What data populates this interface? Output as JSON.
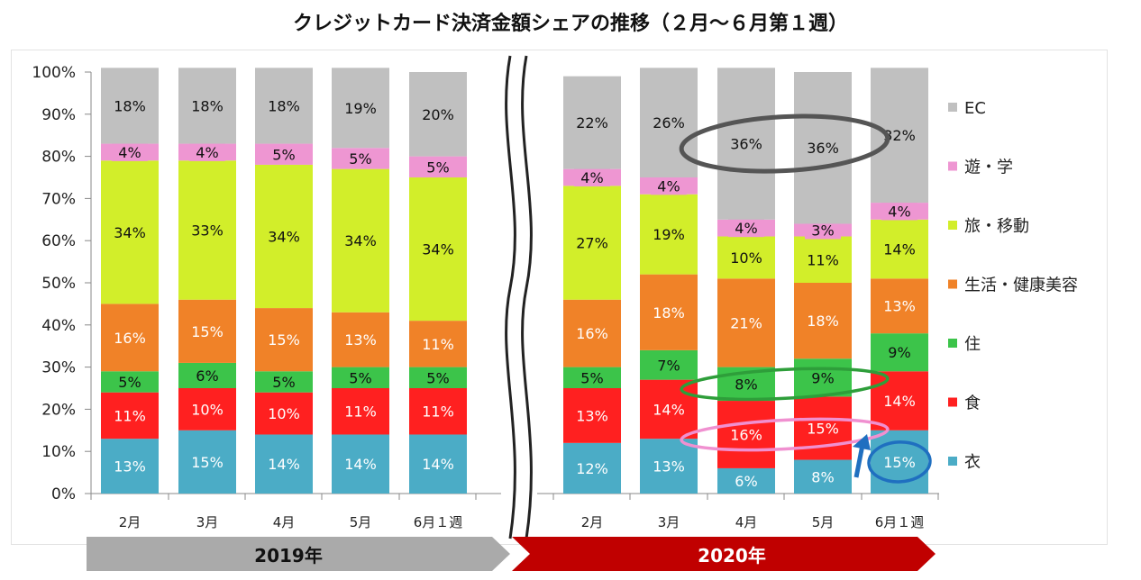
{
  "title": "クレジットカード決済金額シェアの推移（２月～６月第１週）",
  "chart_data": {
    "type": "bar",
    "stacked": true,
    "ylim": [
      0,
      100
    ],
    "yticks": [
      "0%",
      "10%",
      "20%",
      "30%",
      "40%",
      "50%",
      "60%",
      "70%",
      "80%",
      "90%",
      "100%"
    ],
    "groups": [
      {
        "name": "2019年",
        "color": "#aaaaaa",
        "categories": [
          "2月",
          "3月",
          "4月",
          "5月",
          "6月１週"
        ]
      },
      {
        "name": "2020年",
        "color": "#c00000",
        "categories": [
          "2月",
          "3月",
          "4月",
          "5月",
          "6月１週"
        ]
      }
    ],
    "series": [
      {
        "name": "衣",
        "color": "#4bacc6",
        "labelColor": "#ffffff",
        "values": [
          13,
          15,
          14,
          14,
          14,
          12,
          13,
          6,
          8,
          15
        ],
        "labels": [
          "13%",
          "15%",
          "14%",
          "14%",
          "14%",
          "12%",
          "13%",
          "6%",
          "8%",
          "15%"
        ]
      },
      {
        "name": "食",
        "color": "#ff2020",
        "labelColor": "#ffffff",
        "values": [
          11,
          10,
          10,
          11,
          11,
          13,
          14,
          16,
          15,
          14
        ],
        "labels": [
          "11%",
          "10%",
          "10%",
          "11%",
          "11%",
          "13%",
          "14%",
          "16%",
          "15%",
          "14%"
        ]
      },
      {
        "name": "住",
        "color": "#3cc44a",
        "labelColor": "#111111",
        "values": [
          5,
          6,
          5,
          5,
          5,
          5,
          7,
          8,
          9,
          9
        ],
        "labels": [
          "5%",
          "6%",
          "5%",
          "5%",
          "5%",
          "5%",
          "7%",
          "8%",
          "9%",
          "9%"
        ]
      },
      {
        "name": "生活・健康美容",
        "color": "#f08228",
        "labelColor": "#ffffff",
        "values": [
          16,
          15,
          15,
          13,
          11,
          16,
          18,
          21,
          18,
          13
        ],
        "labels": [
          "16%",
          "15%",
          "15%",
          "13%",
          "11%",
          "16%",
          "18%",
          "21%",
          "18%",
          "13%"
        ]
      },
      {
        "name": "旅・移動",
        "color": "#d2ee2a",
        "labelColor": "#111111",
        "values": [
          34,
          33,
          34,
          34,
          34,
          27,
          19,
          10,
          11,
          14
        ],
        "labels": [
          "34%",
          "33%",
          "34%",
          "34%",
          "34%",
          "27%",
          "19%",
          "10%",
          "11%",
          "14%"
        ]
      },
      {
        "name": "遊・学",
        "color": "#ee96d2",
        "labelColor": "#111111",
        "values": [
          4,
          4,
          5,
          5,
          5,
          4,
          4,
          4,
          3,
          4
        ],
        "labels": [
          "4%",
          "4%",
          "5%",
          "5%",
          "5%",
          "4%",
          "4%",
          "4%",
          "3%",
          "4%"
        ]
      },
      {
        "name": "EC",
        "color": "#c0c0c0",
        "labelColor": "#111111",
        "values": [
          18,
          18,
          18,
          19,
          20,
          22,
          26,
          36,
          36,
          32
        ],
        "labels": [
          "18%",
          "18%",
          "18%",
          "19%",
          "20%",
          "22%",
          "26%",
          "36%",
          "36%",
          "32%"
        ]
      }
    ],
    "annotations": [
      {
        "type": "ellipse",
        "series": "EC",
        "bars": [
          7,
          8
        ],
        "color": "#555555"
      },
      {
        "type": "ellipse",
        "series": "住",
        "bars": [
          7,
          8
        ],
        "color": "#2e9e3a"
      },
      {
        "type": "ellipse",
        "series": "食",
        "bars": [
          7,
          8
        ],
        "color": "#f090d0"
      },
      {
        "type": "ellipse",
        "series": "衣",
        "bars": [
          9
        ],
        "color": "#1f6fc0"
      },
      {
        "type": "arrow",
        "direction": "up",
        "color": "#1f6fc0"
      }
    ]
  }
}
